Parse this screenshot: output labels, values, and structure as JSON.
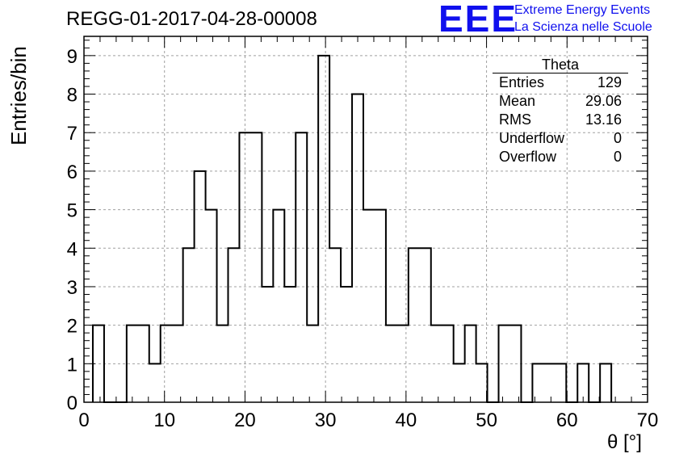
{
  "title": "REGG-01-2017-04-28-00008",
  "logo": {
    "big": "EEE",
    "line1": "Extreme Energy Events",
    "line2": "La Scienza nelle Scuole"
  },
  "stats": {
    "title": "Theta",
    "rows": [
      {
        "label": "Entries",
        "value": "129"
      },
      {
        "label": "Mean",
        "value": "29.06"
      },
      {
        "label": "RMS",
        "value": "13.16"
      },
      {
        "label": "Underflow",
        "value": "0"
      },
      {
        "label": "Overflow",
        "value": "0"
      }
    ]
  },
  "chart_data": {
    "type": "bar",
    "style": "step-histogram",
    "xlabel": "θ [°]",
    "ylabel": "Entries/bin",
    "xlim": [
      0,
      70
    ],
    "ylim": [
      0,
      9.5
    ],
    "grid": true,
    "x_ticks": [
      0,
      10,
      20,
      30,
      40,
      50,
      60,
      70
    ],
    "y_ticks": [
      0,
      1,
      2,
      3,
      4,
      5,
      6,
      7,
      8,
      9
    ],
    "bin_width": 1.4,
    "bin_start": 1.1,
    "values": [
      2,
      0,
      0,
      2,
      2,
      1,
      2,
      2,
      4,
      6,
      5,
      2,
      4,
      7,
      7,
      3,
      5,
      3,
      7,
      2,
      9,
      4,
      3,
      8,
      5,
      5,
      2,
      2,
      4,
      4,
      2,
      2,
      1,
      2,
      1,
      0,
      2,
      2,
      0,
      1,
      1,
      1,
      0,
      1,
      0,
      1
    ]
  }
}
